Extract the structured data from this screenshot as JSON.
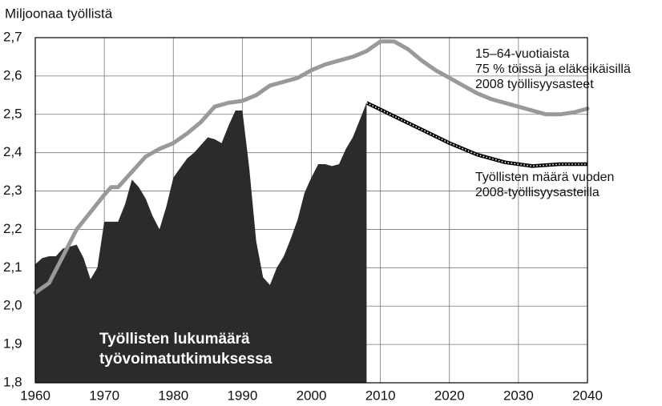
{
  "chart_data": {
    "type": "line",
    "ylabel": "Miljoonaa työllistä",
    "xlim": [
      1960,
      2040
    ],
    "xticks": [
      1960,
      1970,
      1980,
      1990,
      2000,
      2010,
      2020,
      2030,
      2040
    ],
    "ylim": [
      1.8,
      2.7
    ],
    "yticks": [
      {
        "value": 1.8,
        "label": "1,8"
      },
      {
        "value": 1.9,
        "label": "1,9"
      },
      {
        "value": 2.0,
        "label": "2,0"
      },
      {
        "value": 2.1,
        "label": "2,1"
      },
      {
        "value": 2.2,
        "label": "2,2"
      },
      {
        "value": 2.3,
        "label": "2,3"
      },
      {
        "value": 2.4,
        "label": "2,4"
      },
      {
        "value": 2.5,
        "label": "2,5"
      },
      {
        "value": 2.6,
        "label": "2,6"
      },
      {
        "value": 2.7,
        "label": "2,7"
      }
    ],
    "grid": true,
    "series": [
      {
        "name": [
          "Työllisten lukumäärä",
          "työvoimatutkimuksessa"
        ],
        "style": "area",
        "color": "#2b2b2b",
        "x": [
          1960,
          1961,
          1962,
          1963,
          1964,
          1965,
          1966,
          1967,
          1968,
          1969,
          1970,
          1971,
          1972,
          1973,
          1974,
          1975,
          1976,
          1977,
          1978,
          1979,
          1980,
          1981,
          1982,
          1983,
          1984,
          1985,
          1986,
          1987,
          1988,
          1989,
          1990,
          1991,
          1992,
          1993,
          1994,
          1995,
          1996,
          1997,
          1998,
          1999,
          2000,
          2001,
          2002,
          2003,
          2004,
          2005,
          2006,
          2007,
          2008
        ],
        "values": [
          2.109,
          2.125,
          2.13,
          2.13,
          2.15,
          2.155,
          2.16,
          2.125,
          2.07,
          2.1,
          2.22,
          2.22,
          2.22,
          2.265,
          2.33,
          2.31,
          2.28,
          2.235,
          2.2,
          2.26,
          2.335,
          2.36,
          2.385,
          2.4,
          2.42,
          2.44,
          2.435,
          2.425,
          2.47,
          2.51,
          2.51,
          2.36,
          2.17,
          2.075,
          2.055,
          2.1,
          2.13,
          2.175,
          2.225,
          2.295,
          2.335,
          2.37,
          2.37,
          2.365,
          2.37,
          2.41,
          2.44,
          2.485,
          2.53
        ]
      },
      {
        "name": [
          "15–64-vuotiaista",
          "75 % töissä ja eläkeikäisillä",
          "2008 työllisyysasteet"
        ],
        "style": "line",
        "color": "#999999",
        "x": [
          1960,
          1962,
          1964,
          1966,
          1968,
          1970,
          1971,
          1972,
          1974,
          1976,
          1978,
          1980,
          1982,
          1984,
          1986,
          1988,
          1990,
          1992,
          1994,
          1996,
          1998,
          2000,
          2002,
          2004,
          2006,
          2008,
          2010,
          2012,
          2014,
          2016,
          2018,
          2020,
          2022,
          2024,
          2026,
          2028,
          2030,
          2032,
          2034,
          2036,
          2038,
          2040
        ],
        "values": [
          2.035,
          2.06,
          2.13,
          2.2,
          2.245,
          2.29,
          2.31,
          2.31,
          2.35,
          2.39,
          2.41,
          2.425,
          2.45,
          2.48,
          2.52,
          2.53,
          2.535,
          2.55,
          2.575,
          2.585,
          2.595,
          2.615,
          2.63,
          2.64,
          2.65,
          2.665,
          2.69,
          2.69,
          2.67,
          2.64,
          2.615,
          2.595,
          2.575,
          2.555,
          2.54,
          2.53,
          2.52,
          2.51,
          2.5,
          2.5,
          2.505,
          2.515
        ]
      },
      {
        "name": [
          "Työllisten määrä vuoden",
          "2008-työllisyysasteilla"
        ],
        "style": "dotted",
        "color": "#000000",
        "x": [
          2008,
          2012,
          2016,
          2020,
          2024,
          2028,
          2032,
          2036,
          2040
        ],
        "values": [
          2.53,
          2.495,
          2.46,
          2.425,
          2.395,
          2.375,
          2.365,
          2.37,
          2.37
        ]
      }
    ]
  }
}
